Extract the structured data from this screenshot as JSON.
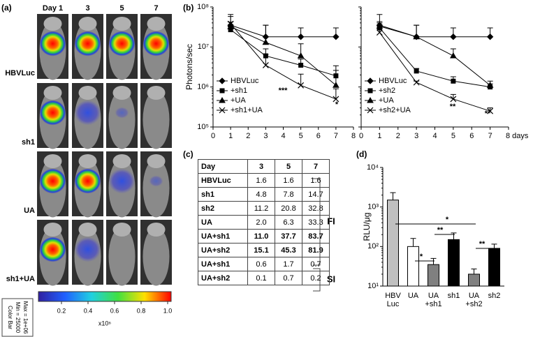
{
  "panel_labels": [
    "(a)",
    "(b)",
    "(c)",
    "(d)"
  ],
  "imaging": {
    "days": [
      "Day 1",
      "3",
      "5",
      "7"
    ],
    "groups": [
      "HBVLuc",
      "sh1",
      "UA",
      "sh1+UA"
    ],
    "colorbar_ticks": [
      0.2,
      0.4,
      0.6,
      0.8,
      {
        "value": 1,
        "label": "1.0"
      }
    ],
    "colorbar_unit": "x10⁶",
    "colorbar_box": [
      "Color Bar",
      "Min = 25000",
      "Max = 1e+06"
    ]
  },
  "chart_data": [
    {
      "type": "line",
      "log_y": true,
      "ylabel": "Photons/sec",
      "x": [
        1,
        3,
        5,
        7
      ],
      "xlim": [
        0,
        8
      ],
      "xticks": [
        0,
        1,
        2,
        3,
        4,
        5,
        6,
        7,
        8
      ],
      "ylim": [
        100000,
        100000000
      ],
      "yticks": [
        {
          "value": 100000,
          "label": "10⁵"
        },
        {
          "value": 1000000,
          "label": "10⁶"
        },
        {
          "value": 10000000,
          "label": "10⁷"
        },
        {
          "value": 100000000,
          "label": "10⁸"
        }
      ],
      "series": [
        {
          "name": "HBVLuc",
          "color": "#000",
          "marker": "diamond",
          "values": [
            35000000,
            18000000,
            18000000,
            18000000
          ],
          "errors": [
            30000000,
            17000000,
            12000000,
            12000000
          ]
        },
        {
          "name": "+sh1",
          "color": "#000",
          "marker": "square",
          "values": [
            27000000,
            6000000,
            3500000,
            1900000
          ],
          "errors": [
            5000000,
            3000000,
            1500000,
            1500000
          ]
        },
        {
          "name": "+UA",
          "color": "#000",
          "marker": "triangle",
          "values": [
            32000000,
            13000000,
            6000000,
            1100000
          ],
          "errors": [
            10000000,
            22000000,
            6000000,
            1500000
          ]
        },
        {
          "name": "+sh1+UA",
          "color": "#000",
          "marker": "x",
          "values": [
            38000000,
            3500000,
            1100000,
            500000
          ],
          "errors": [
            20000000,
            3000000,
            1000000,
            400000
          ]
        }
      ],
      "annotations": [
        "***",
        "*"
      ]
    },
    {
      "type": "line",
      "log_y": true,
      "ytick_labels": false,
      "x": [
        1,
        3,
        5,
        7
      ],
      "xlim": [
        0,
        8
      ],
      "xticks": [
        0,
        1,
        2,
        3,
        4,
        5,
        6,
        7,
        {
          "value": 8,
          "label": "8 days"
        }
      ],
      "ylim": [
        100000,
        100000000
      ],
      "yticks": [
        100000,
        1000000,
        10000000,
        100000000
      ],
      "series": [
        {
          "name": "HBVLuc",
          "color": "#000",
          "marker": "diamond",
          "values": [
            35000000,
            18000000,
            18000000,
            18000000
          ],
          "errors": [
            30000000,
            17000000,
            12000000,
            12000000
          ]
        },
        {
          "name": "+sh2",
          "color": "#000",
          "marker": "square",
          "values": [
            30000000,
            2500000,
            1400000,
            1000000
          ],
          "errors": [
            10000000,
            400000,
            400000,
            200000
          ]
        },
        {
          "name": "+UA",
          "color": "#000",
          "marker": "triangle",
          "values": [
            33000000,
            18000000,
            6000000,
            1100000
          ],
          "errors": [
            10000000,
            17000000,
            3000000,
            300000
          ]
        },
        {
          "name": "+sh2+UA",
          "color": "#000",
          "marker": "x",
          "values": [
            23000000,
            1300000,
            500000,
            250000
          ],
          "errors": [
            10000000,
            100000,
            150000,
            50000
          ]
        }
      ],
      "annotations": [
        "**",
        "**"
      ]
    },
    {
      "type": "bar",
      "log_y": true,
      "ylabel": "RLU/μg",
      "categories": [
        [
          "HBV",
          "Luc"
        ],
        [
          "UA"
        ],
        [
          "UA",
          "+sh1"
        ],
        [
          "sh1"
        ],
        [
          "UA",
          "+sh2"
        ],
        [
          "sh2"
        ]
      ],
      "values": [
        1500,
        100,
        35,
        150,
        20,
        90
      ],
      "errors": [
        800,
        60,
        15,
        70,
        7,
        25
      ],
      "colors": [
        "#c0c0c0",
        "#ffffff",
        "#808080",
        "#000000",
        "#808080",
        "#000000"
      ],
      "ylim": [
        10,
        10000
      ],
      "yticks": [
        {
          "value": 10,
          "label": "10¹"
        },
        {
          "value": 100,
          "label": "10²"
        },
        {
          "value": 1000,
          "label": "10³"
        },
        {
          "value": 10000,
          "label": "10⁴"
        }
      ],
      "annotations": [
        "*",
        "**",
        "*",
        "**"
      ]
    }
  ],
  "table": {
    "header": [
      "Day",
      "3",
      "5",
      "7"
    ],
    "rows": [
      [
        "HBVLuc",
        "1.6",
        "1.6",
        "1.6"
      ],
      [
        "sh1",
        "4.8",
        "7.8",
        "14.7"
      ],
      [
        "sh2",
        "11.2",
        "20.8",
        "32.8"
      ],
      [
        "UA",
        "2.0",
        "6.3",
        "33.3"
      ],
      [
        "UA+sh1",
        "11.0",
        "37.7",
        "83.7"
      ],
      [
        "UA+sh2",
        "15.1",
        "45.3",
        "81.9"
      ],
      [
        "UA+sh1",
        "0.6",
        "1.7",
        "0.7"
      ],
      [
        "UA+sh2",
        "0.1",
        "0.7",
        "0.2"
      ]
    ],
    "groups": [
      "FI",
      "SI"
    ]
  }
}
